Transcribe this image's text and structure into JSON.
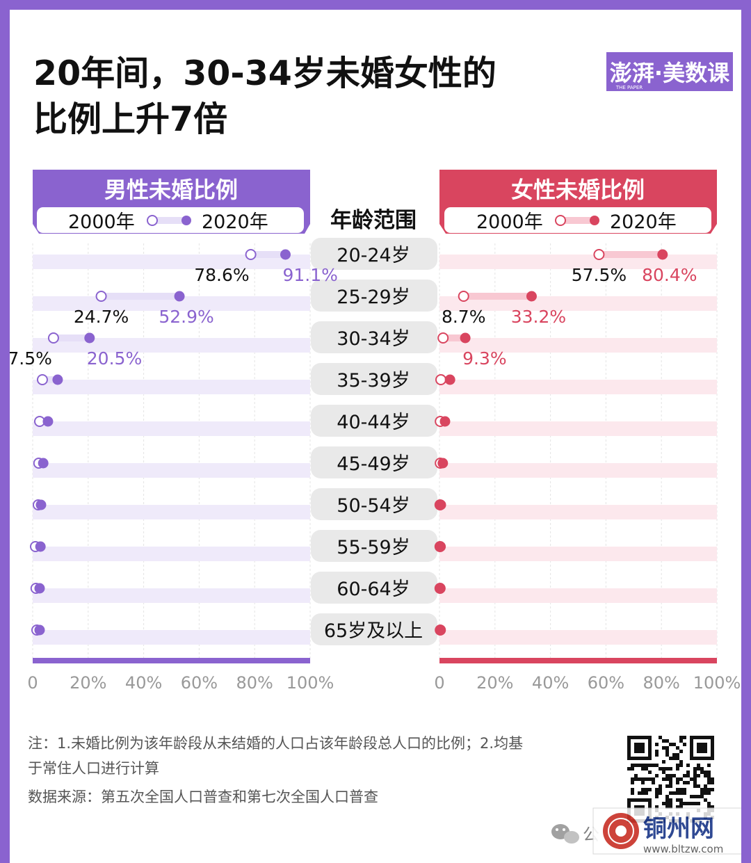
{
  "title_line1": "20年间，30-34岁未婚女性的",
  "title_line2": "比例上升7倍",
  "logo_text": "澎湃·美数课",
  "logo_subtext": "THE PAPER",
  "colors": {
    "male": "#8a63cf",
    "male_light": "#e6dff7",
    "male_bar": "#efeafa",
    "female": "#d9455f",
    "female_light": "#f8c8d2",
    "female_bar": "#fce8ed",
    "pill": "#e9e9e9"
  },
  "chart_data": {
    "type": "dumbbell",
    "center_header": "年龄范围",
    "categories": [
      "20-24岁",
      "25-29岁",
      "30-34岁",
      "35-39岁",
      "40-44岁",
      "45-49岁",
      "50-54岁",
      "55-59岁",
      "60-64岁",
      "65岁及以上"
    ],
    "xlim": [
      0,
      100
    ],
    "x_ticks": [
      "0",
      "20%",
      "40%",
      "60%",
      "80%",
      "100%"
    ],
    "legend": {
      "year_a": "2000年",
      "year_b": "2020年"
    },
    "panels": [
      {
        "name": "男性未婚比例",
        "color_key": "male",
        "series": [
          {
            "name": "2000年",
            "values": [
              78.6,
              24.7,
              7.5,
              3.5,
              2.5,
              2.2,
              2.0,
              1.0,
              1.2,
              1.5
            ]
          },
          {
            "name": "2020年",
            "values": [
              91.1,
              52.9,
              20.5,
              9.0,
              5.5,
              3.8,
              3.0,
              2.8,
              2.5,
              2.5
            ]
          }
        ],
        "value_labels": [
          {
            "row": 0,
            "a": "78.6%",
            "b": "91.1%"
          },
          {
            "row": 1,
            "a": "24.7%",
            "b": "52.9%"
          },
          {
            "row": 2,
            "a": "7.5%",
            "b": "20.5%"
          }
        ]
      },
      {
        "name": "女性未婚比例",
        "color_key": "female",
        "series": [
          {
            "name": "2000年",
            "values": [
              57.5,
              8.7,
              1.3,
              0.5,
              0.3,
              0.3,
              0.2,
              0.2,
              0.2,
              0.3
            ]
          },
          {
            "name": "2020年",
            "values": [
              80.4,
              33.2,
              9.3,
              3.8,
              2.0,
              1.2,
              0.5,
              0.4,
              0.3,
              0.4
            ]
          }
        ],
        "value_labels": [
          {
            "row": 0,
            "a": "57.5%",
            "b": "80.4%"
          },
          {
            "row": 1,
            "a": "8.7%",
            "b": "33.2%"
          },
          {
            "row": 2,
            "a": "",
            "b": "9.3%"
          }
        ]
      }
    ]
  },
  "notes": {
    "line1": "注：1.未婚比例为该年龄段从未结婚的人口占该年龄段总人口的比例；2.均基",
    "line2": "于常住人口进行计算",
    "source": "数据来源：第五次全国人口普查和第七次全国人口普查"
  },
  "watermark": {
    "wechat_prefix": "公",
    "site_name": "铜州网",
    "site_url": "www.bltzw.com"
  }
}
